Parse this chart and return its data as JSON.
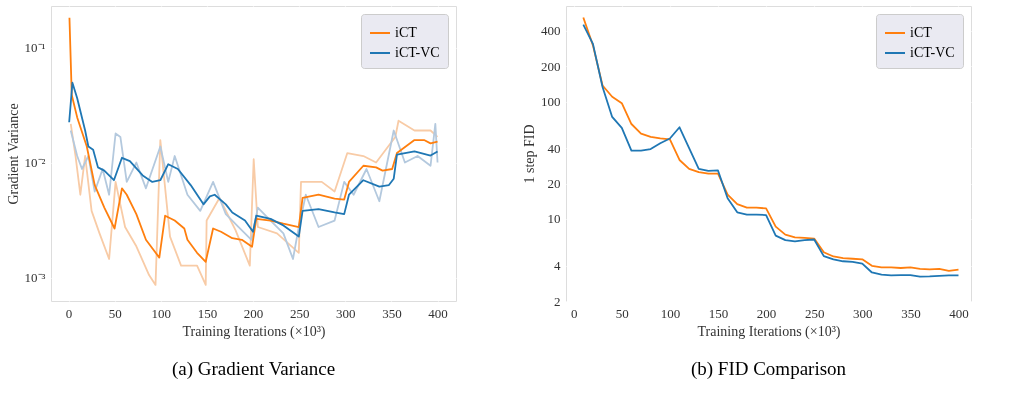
{
  "chart_data": [
    {
      "type": "line",
      "title": "(a) Gradient Variance",
      "xlabel": "Training Iterations (×10³)",
      "ylabel": "Gradient Variance",
      "log": "y",
      "grid": true,
      "legend": "top right",
      "xlim": [
        -19,
        420
      ],
      "ylim": [
        0.000625,
        0.23
      ],
      "xticks": [
        0,
        50,
        100,
        150,
        200,
        250,
        300,
        350,
        400
      ],
      "yticks": [
        {
          "value": 0.001,
          "label": "10⁻³"
        },
        {
          "value": 0.01,
          "label": "10⁻²"
        },
        {
          "value": 0.1,
          "label": "10⁻¹"
        }
      ],
      "series": [
        {
          "color": "#f8cba6",
          "x": [
            2.4,
            7.6,
            12.8,
            18,
            25,
            33.6,
            44,
            51,
            61.3,
            73.5,
            87.3,
            94.3,
            99.5,
            110,
            122,
            139.3,
            148.7,
            149.7,
            163.6,
            181,
            196.5,
            200.7,
            205.2,
            226,
            249.6,
            252,
            274.5,
            288.4,
            302.2,
            319.6,
            333.4,
            354.2,
            357.7,
            375,
            392.4,
            400
          ],
          "values": [
            0.0217,
            0.0114,
            0.00525,
            0.0114,
            0.0038,
            0.00242,
            0.00145,
            0.00679,
            0.00275,
            0.00187,
            0.00105,
            0.000863,
            0.0157,
            0.00227,
            0.00127,
            0.00127,
            0.000863,
            0.00313,
            0.00492,
            0.00258,
            0.00127,
            0.0107,
            0.00275,
            0.00242,
            0.00164,
            0.00679,
            0.00679,
            0.0056,
            0.0121,
            0.0114,
            0.01,
            0.0167,
            0.0231,
            0.019,
            0.019,
            0.0167
          ]
        },
        {
          "color": "#b4c9de",
          "x": [
            2.4,
            9.4,
            14.6,
            21.5,
            28.4,
            37,
            44,
            51,
            56.2,
            63.1,
            73.5,
            83.9,
            99.5,
            108.1,
            115.1,
            128.9,
            142.8,
            156.7,
            170.5,
            184.4,
            198.3,
            205.2,
            219,
            232.9,
            243.3,
            249.6,
            257.2,
            271,
            288.4,
            298.8,
            309,
            323,
            336.9,
            352.5,
            364.6,
            378.4,
            392.4,
            397.6,
            400
          ],
          "values": [
            0.019,
            0.0114,
            0.00879,
            0.0114,
            0.0056,
            0.00879,
            0.00525,
            0.0179,
            0.0167,
            0.00679,
            0.01,
            0.00597,
            0.0138,
            0.00679,
            0.0114,
            0.00525,
            0.0038,
            0.00679,
            0.00356,
            0.00275,
            0.00213,
            0.00406,
            0.00313,
            0.00242,
            0.00145,
            0.00275,
            0.00525,
            0.00275,
            0.00313,
            0.00679,
            0.00525,
            0.00879,
            0.00461,
            0.019,
            0.01,
            0.0114,
            0.00938,
            0.0217,
            0.01
          ]
        },
        {
          "name": "iCT",
          "color": "#ff7f0e",
          "x": [
            1,
            3.5,
            9.4,
            19.8,
            28.4,
            38.8,
            49.9,
            57.9,
            63.1,
            73.5,
            83.9,
            98.4,
            104.7,
            115.1,
            125.5,
            128.9,
            139.3,
            148.7,
            156.7,
            165.3,
            177.5,
            187.9,
            198.9,
            203.5,
            219,
            232.9,
            249.6,
            253.7,
            271,
            288.4,
            298.8,
            304,
            319.6,
            333.4,
            340.4,
            350.8,
            356,
            375,
            385.4,
            392.4,
            400
          ],
          "values": [
            0.182,
            0.0387,
            0.0247,
            0.0138,
            0.00637,
            0.00406,
            0.00267,
            0.00597,
            0.00525,
            0.00356,
            0.00213,
            0.00149,
            0.00345,
            0.00313,
            0.00267,
            0.00213,
            0.00164,
            0.00137,
            0.00267,
            0.0025,
            0.0022,
            0.00213,
            0.00185,
            0.00324,
            0.00313,
            0.00294,
            0.00275,
            0.00492,
            0.00525,
            0.00485,
            0.00477,
            0.00679,
            0.00938,
            0.00908,
            0.00851,
            0.00879,
            0.0121,
            0.0157,
            0.0157,
            0.0147,
            0.0152
          ]
        },
        {
          "name": "iCT-VC",
          "color": "#1f77b4",
          "x": [
            0.7,
            4.2,
            9.4,
            18,
            21.5,
            26.7,
            31.9,
            38.8,
            49.2,
            57.9,
            66.5,
            80.4,
            90.8,
            99.5,
            108.1,
            118.5,
            132.4,
            146.3,
            153.2,
            158.4,
            170.5,
            177.5,
            191.3,
            200,
            203.5,
            219,
            232.9,
            249.6,
            253.7,
            271,
            288.4,
            298.8,
            304,
            319.6,
            336.9,
            347.3,
            352.5,
            356,
            375,
            392.4,
            400
          ],
          "values": [
            0.0224,
            0.0495,
            0.0363,
            0.019,
            0.0138,
            0.0129,
            0.00908,
            0.00851,
            0.00702,
            0.011,
            0.0103,
            0.00773,
            0.00679,
            0.00702,
            0.00968,
            0.00879,
            0.00637,
            0.00433,
            0.00508,
            0.00525,
            0.00433,
            0.00368,
            0.00313,
            0.0025,
            0.00345,
            0.00324,
            0.00284,
            0.00227,
            0.0038,
            0.00393,
            0.00368,
            0.00356,
            0.00525,
            0.00702,
            0.00617,
            0.00637,
            0.00724,
            0.0117,
            0.0125,
            0.0115,
            0.0125
          ]
        }
      ]
    },
    {
      "type": "line",
      "title": "(b) FID Comparison",
      "xlabel": "Training Iterations (×10³)",
      "ylabel": "1 step FID",
      "log": "y",
      "grid": true,
      "legend": "top right",
      "xlim": [
        -8,
        413
      ],
      "ylim": [
        2,
        652
      ],
      "xticks": [
        0,
        50,
        100,
        150,
        200,
        250,
        300,
        350,
        400
      ],
      "yticks": [
        2,
        4,
        10,
        20,
        40,
        100,
        200,
        400
      ],
      "x": [
        10,
        20,
        30,
        40,
        50,
        60,
        70,
        80,
        90,
        100,
        110,
        120,
        130,
        140,
        150,
        160,
        170,
        180,
        190,
        200,
        210,
        220,
        230,
        240,
        250,
        260,
        270,
        280,
        290,
        300,
        310,
        320,
        330,
        340,
        350,
        360,
        370,
        380,
        390,
        400
      ],
      "series": [
        {
          "name": "iCT",
          "color": "#ff7f0e",
          "values": [
            520,
            301,
            137,
            110,
            96.9,
            64.4,
            53.3,
            50.1,
            48.5,
            47.6,
            31.8,
            26.7,
            25.1,
            24.3,
            24.3,
            16.1,
            13.4,
            12.5,
            12.5,
            12.3,
            8.6,
            7.35,
            6.98,
            6.9,
            6.81,
            5.2,
            4.79,
            4.64,
            4.58,
            4.53,
            3.99,
            3.87,
            3.87,
            3.82,
            3.87,
            3.75,
            3.72,
            3.75,
            3.61,
            3.7
          ]
        },
        {
          "name": "iCT-VC",
          "color": "#1f77b4",
          "values": [
            453,
            310,
            133,
            74,
            59.7,
            38.2,
            38.2,
            39.4,
            44.2,
            48.5,
            60.4,
            40.2,
            26.7,
            25.7,
            25.9,
            15.0,
            11.4,
            10.9,
            10.9,
            10.8,
            7.21,
            6.61,
            6.44,
            6.61,
            6.68,
            4.82,
            4.53,
            4.36,
            4.31,
            4.17,
            3.5,
            3.35,
            3.31,
            3.32,
            3.32,
            3.22,
            3.24,
            3.28,
            3.31,
            3.31
          ]
        }
      ]
    }
  ]
}
